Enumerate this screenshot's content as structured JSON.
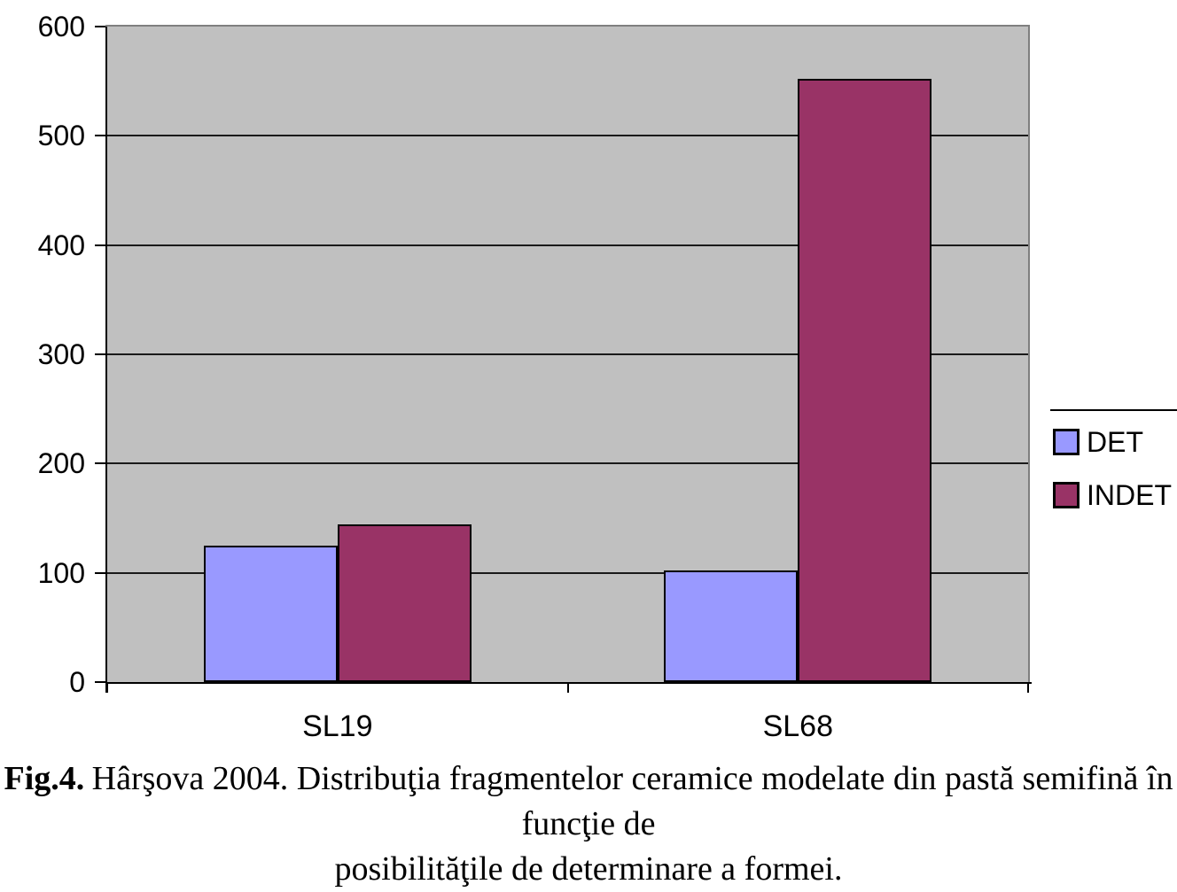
{
  "chart_data": {
    "type": "bar",
    "title": "",
    "xlabel": "",
    "ylabel": "",
    "categories": [
      "SL19",
      "SL68"
    ],
    "series": [
      {
        "name": "DET",
        "color": "#9999FF",
        "values": [
          125,
          102
        ]
      },
      {
        "name": "INDET",
        "color": "#993366",
        "values": [
          144,
          552
        ]
      }
    ],
    "ylim": [
      0,
      600
    ],
    "yticks": [
      0,
      100,
      200,
      300,
      400,
      500,
      600
    ],
    "ytick_labels": [
      "0",
      "100",
      "200",
      "300",
      "400",
      "500",
      "600"
    ],
    "grid": true,
    "legend_position": "right-outside",
    "plot_background": "#C0C0C0",
    "plot_border_color": "#7F7F7F",
    "gridline_color": "#1a1a1a",
    "axis_color": "#000000",
    "bar_border_color": "#000000"
  },
  "caption": {
    "prefix": "Fig.4.",
    "line1": "Hârşova 2004. Distribuţia fragmentelor ceramice modelate din pastă semifină în funcţie de",
    "line2": "posibilităţile de determinare a formei."
  }
}
